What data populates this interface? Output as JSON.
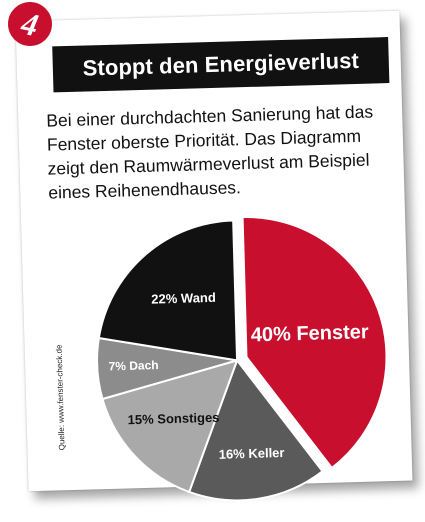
{
  "badge_number": "4",
  "title": "Stoppt den Energieverlust",
  "description": "Bei einer durchdachten Sanierung hat das Fenster oberste Priorität. Das Diagramm zeigt den Raumwärmeverlust am Beispiel eines Reihenendhauses.",
  "source": "Quelle: www.fenster-check.de",
  "colors": {
    "accent_red": "#c8102e",
    "title_bar": "#111111"
  },
  "chart_data": {
    "type": "pie",
    "title": "",
    "slices": [
      {
        "label": "40% Fenster",
        "value": 40,
        "color": "#c8102e",
        "exploded": true,
        "text_color": "#ffffff"
      },
      {
        "label": "16% Keller",
        "value": 16,
        "color": "#5a5a5a",
        "exploded": false,
        "text_color": "#ffffff"
      },
      {
        "label": "15% Sonstiges",
        "value": 15,
        "color": "#a9a9a9",
        "exploded": false,
        "text_color": "#111111"
      },
      {
        "label": "7% Dach",
        "value": 7,
        "color": "#8c8c8c",
        "exploded": false,
        "text_color": "#ffffff"
      },
      {
        "label": "22% Wand",
        "value": 22,
        "color": "#111111",
        "exploded": false,
        "text_color": "#ffffff"
      }
    ]
  }
}
